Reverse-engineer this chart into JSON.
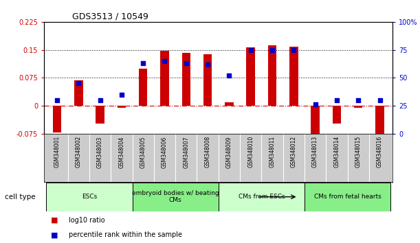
{
  "title": "GDS3513 / 10549",
  "samples": [
    "GSM348001",
    "GSM348002",
    "GSM348003",
    "GSM348004",
    "GSM348005",
    "GSM348006",
    "GSM348007",
    "GSM348008",
    "GSM348009",
    "GSM348010",
    "GSM348011",
    "GSM348012",
    "GSM348013",
    "GSM348014",
    "GSM348015",
    "GSM348016"
  ],
  "log10_ratio": [
    -0.072,
    0.068,
    -0.048,
    -0.005,
    0.1,
    0.148,
    0.142,
    0.138,
    0.01,
    0.157,
    0.162,
    0.158,
    -0.09,
    -0.047,
    -0.005,
    -0.075
  ],
  "percentile_rank": [
    30,
    45,
    30,
    35,
    63,
    65,
    63,
    62,
    52,
    75,
    75,
    75,
    26,
    30,
    30,
    30
  ],
  "bar_color": "#cc0000",
  "dot_color": "#0000cc",
  "ylim_left": [
    -0.075,
    0.225
  ],
  "ylim_right": [
    0,
    100
  ],
  "yticks_left": [
    -0.075,
    0,
    0.075,
    0.15,
    0.225
  ],
  "yticks_right": [
    0,
    25,
    50,
    75,
    100
  ],
  "ytick_labels_left": [
    "-0.075",
    "0",
    "0.075",
    "0.15",
    "0.225"
  ],
  "ytick_labels_right": [
    "0",
    "25",
    "50",
    "75",
    "100%"
  ],
  "hline_y": 0.0,
  "dotted_lines": [
    0.075,
    0.15
  ],
  "cell_type_groups": [
    {
      "label": "ESCs",
      "start": 0,
      "end": 3,
      "color": "#ccffcc"
    },
    {
      "label": "embryoid bodies w/ beating\nCMs",
      "start": 4,
      "end": 7,
      "color": "#88ee88"
    },
    {
      "label": "CMs from ESCs",
      "start": 8,
      "end": 11,
      "color": "#ccffcc"
    },
    {
      "label": "CMs from fetal hearts",
      "start": 12,
      "end": 15,
      "color": "#88ee88"
    }
  ],
  "legend_items": [
    {
      "label": "log10 ratio",
      "color": "#cc0000"
    },
    {
      "label": "percentile rank within the sample",
      "color": "#0000cc"
    }
  ],
  "cell_type_label": "cell type",
  "background_color": "#ffffff",
  "plot_bg": "#ffffff",
  "zero_line_color": "#cc0000",
  "tick_label_color_left": "#cc0000",
  "tick_label_color_right": "#0000cc",
  "sample_box_color": "#cccccc",
  "bar_width": 0.4,
  "dot_size": 25
}
